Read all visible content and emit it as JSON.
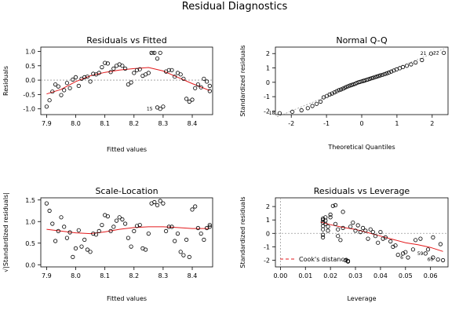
{
  "figure": {
    "title": "Residual Diagnostics"
  },
  "chart_data": [
    {
      "id": "rvf",
      "type": "scatter",
      "title": "Residuals vs Fitted",
      "xlabel": "Fitted values",
      "ylabel": "Residuals",
      "xlim": [
        7.88,
        8.47
      ],
      "ylim": [
        -1.2,
        1.15
      ],
      "xticks": [
        7.9,
        8.0,
        8.1,
        8.2,
        8.3,
        8.4
      ],
      "xticklabels": [
        "7.9",
        "8.0",
        "8.1",
        "8.2",
        "8.3",
        "8.4"
      ],
      "yticks": [
        -1.0,
        -0.5,
        0.0,
        0.5,
        1.0
      ],
      "yticklabels": [
        "-1.0",
        "-0.5",
        "0.0",
        "0.5",
        "1.0"
      ],
      "dotted_zero": true,
      "points": [
        [
          7.9,
          -0.92
        ],
        [
          7.91,
          -0.7
        ],
        [
          7.92,
          -0.4
        ],
        [
          7.93,
          -0.15
        ],
        [
          7.94,
          -0.22
        ],
        [
          7.95,
          -0.52
        ],
        [
          7.96,
          -0.35
        ],
        [
          7.97,
          -0.1
        ],
        [
          7.98,
          -0.28
        ],
        [
          7.99,
          0.02
        ],
        [
          8.0,
          0.1
        ],
        [
          8.01,
          -0.2
        ],
        [
          8.02,
          0.05
        ],
        [
          8.03,
          0.1
        ],
        [
          8.04,
          0.12
        ],
        [
          8.05,
          -0.05
        ],
        [
          8.06,
          0.22
        ],
        [
          8.07,
          0.2
        ],
        [
          8.08,
          0.25
        ],
        [
          8.09,
          0.45
        ],
        [
          8.1,
          0.6
        ],
        [
          8.11,
          0.58
        ],
        [
          8.12,
          0.28
        ],
        [
          8.13,
          0.4
        ],
        [
          8.14,
          0.5
        ],
        [
          8.15,
          0.55
        ],
        [
          8.16,
          0.5
        ],
        [
          8.17,
          0.4
        ],
        [
          8.18,
          -0.15
        ],
        [
          8.19,
          -0.08
        ],
        [
          8.2,
          0.25
        ],
        [
          8.21,
          0.35
        ],
        [
          8.22,
          0.38
        ],
        [
          8.23,
          0.15
        ],
        [
          8.24,
          0.2
        ],
        [
          8.25,
          0.25
        ],
        [
          8.26,
          0.95
        ],
        [
          8.27,
          0.95
        ],
        [
          8.28,
          0.75
        ],
        [
          8.29,
          0.95
        ],
        [
          8.28,
          -0.95
        ],
        [
          8.29,
          -1.0
        ],
        [
          8.3,
          -0.92
        ],
        [
          8.31,
          0.3
        ],
        [
          8.32,
          0.35
        ],
        [
          8.33,
          0.35
        ],
        [
          8.34,
          0.12
        ],
        [
          8.35,
          0.25
        ],
        [
          8.36,
          0.2
        ],
        [
          8.37,
          0.05
        ],
        [
          8.38,
          -0.65
        ],
        [
          8.39,
          -0.75
        ],
        [
          8.4,
          -0.68
        ],
        [
          8.41,
          -0.28
        ],
        [
          8.42,
          -0.15
        ],
        [
          8.43,
          -0.25
        ],
        [
          8.44,
          0.05
        ],
        [
          8.45,
          -0.05
        ],
        [
          8.46,
          -0.38
        ],
        [
          8.46,
          -0.2
        ]
      ],
      "smooth": [
        [
          7.9,
          -0.48
        ],
        [
          7.95,
          -0.32
        ],
        [
          8.0,
          -0.05
        ],
        [
          8.05,
          0.15
        ],
        [
          8.1,
          0.27
        ],
        [
          8.15,
          0.35
        ],
        [
          8.2,
          0.4
        ],
        [
          8.25,
          0.44
        ],
        [
          8.3,
          0.32
        ],
        [
          8.35,
          0.1
        ],
        [
          8.4,
          -0.12
        ],
        [
          8.46,
          -0.36
        ]
      ],
      "labels": [
        {
          "text": "21",
          "x": 8.29,
          "y": 0.95
        },
        {
          "text": "1S",
          "x": 8.28,
          "y": -1.0
        }
      ]
    },
    {
      "id": "qq",
      "type": "scatter",
      "title": "Normal Q-Q",
      "xlabel": "Theoretical Quantiles",
      "ylabel": "Standardized residuals",
      "xlim": [
        -2.45,
        2.45
      ],
      "ylim": [
        -2.25,
        2.45
      ],
      "xticks": [
        -2,
        -1,
        0,
        1,
        2
      ],
      "xticklabels": [
        "-2",
        "-1",
        "0",
        "1",
        "2"
      ],
      "yticks": [
        -2,
        -1,
        0,
        1,
        2
      ],
      "yticklabels": [
        "-2",
        "-1",
        "0",
        "1",
        "2"
      ],
      "refline": [
        [
          -2.4,
          -2.4
        ],
        [
          2.4,
          2.4
        ]
      ],
      "points": [
        [
          -2.33,
          -2.15
        ],
        [
          -1.97,
          -2.05
        ],
        [
          -1.71,
          -1.95
        ],
        [
          -1.53,
          -1.8
        ],
        [
          -1.4,
          -1.65
        ],
        [
          -1.28,
          -1.5
        ],
        [
          -1.17,
          -1.35
        ],
        [
          -1.08,
          -1.05
        ],
        [
          -0.99,
          -0.95
        ],
        [
          -0.91,
          -0.85
        ],
        [
          -0.84,
          -0.78
        ],
        [
          -0.77,
          -0.7
        ],
        [
          -0.71,
          -0.62
        ],
        [
          -0.65,
          -0.55
        ],
        [
          -0.59,
          -0.5
        ],
        [
          -0.53,
          -0.44
        ],
        [
          -0.48,
          -0.38
        ],
        [
          -0.43,
          -0.32
        ],
        [
          -0.38,
          -0.27
        ],
        [
          -0.33,
          -0.22
        ],
        [
          -0.28,
          -0.18
        ],
        [
          -0.23,
          -0.14
        ],
        [
          -0.18,
          -0.1
        ],
        [
          -0.14,
          -0.05
        ],
        [
          -0.09,
          0.0
        ],
        [
          -0.05,
          0.03
        ],
        [
          0.0,
          0.06
        ],
        [
          0.05,
          0.1
        ],
        [
          0.09,
          0.13
        ],
        [
          0.14,
          0.17
        ],
        [
          0.18,
          0.2
        ],
        [
          0.23,
          0.24
        ],
        [
          0.28,
          0.28
        ],
        [
          0.33,
          0.32
        ],
        [
          0.38,
          0.36
        ],
        [
          0.43,
          0.4
        ],
        [
          0.48,
          0.44
        ],
        [
          0.53,
          0.48
        ],
        [
          0.59,
          0.52
        ],
        [
          0.65,
          0.57
        ],
        [
          0.71,
          0.62
        ],
        [
          0.77,
          0.68
        ],
        [
          0.84,
          0.75
        ],
        [
          0.91,
          0.82
        ],
        [
          0.99,
          0.9
        ],
        [
          1.08,
          0.98
        ],
        [
          1.17,
          1.06
        ],
        [
          1.28,
          1.15
        ],
        [
          1.4,
          1.25
        ],
        [
          1.53,
          1.38
        ],
        [
          1.71,
          1.55
        ],
        [
          1.97,
          2.0
        ],
        [
          2.33,
          2.05
        ]
      ],
      "labels": [
        {
          "text": "18",
          "x": -2.33,
          "y": -2.15
        },
        {
          "text": "21",
          "x": 1.97,
          "y": 2.0
        },
        {
          "text": "22",
          "x": 2.33,
          "y": 2.05
        }
      ]
    },
    {
      "id": "sl",
      "type": "scatter",
      "title": "Scale-Location",
      "xlabel": "Fitted values",
      "ylabel": "√|Standardized residuals|",
      "xlim": [
        7.88,
        8.47
      ],
      "ylim": [
        -0.05,
        1.55
      ],
      "xticks": [
        7.9,
        8.0,
        8.1,
        8.2,
        8.3,
        8.4
      ],
      "xticklabels": [
        "7.9",
        "8.0",
        "8.1",
        "8.2",
        "8.3",
        "8.4"
      ],
      "yticks": [
        0.0,
        0.5,
        1.0,
        1.5
      ],
      "yticklabels": [
        "0.0",
        "0.5",
        "1.0",
        "1.5"
      ],
      "points": [
        [
          7.9,
          1.42
        ],
        [
          7.91,
          1.25
        ],
        [
          7.92,
          0.95
        ],
        [
          7.93,
          0.55
        ],
        [
          7.94,
          0.78
        ],
        [
          7.95,
          1.1
        ],
        [
          7.96,
          0.88
        ],
        [
          7.97,
          0.62
        ],
        [
          7.98,
          0.75
        ],
        [
          7.99,
          0.18
        ],
        [
          8.0,
          0.38
        ],
        [
          8.01,
          0.8
        ],
        [
          8.02,
          0.42
        ],
        [
          8.03,
          0.58
        ],
        [
          8.04,
          0.35
        ],
        [
          8.05,
          0.3
        ],
        [
          8.06,
          0.72
        ],
        [
          8.07,
          0.7
        ],
        [
          8.08,
          0.78
        ],
        [
          8.09,
          0.92
        ],
        [
          8.1,
          1.15
        ],
        [
          8.11,
          1.12
        ],
        [
          8.12,
          0.78
        ],
        [
          8.13,
          0.88
        ],
        [
          8.14,
          1.02
        ],
        [
          8.15,
          1.1
        ],
        [
          8.16,
          1.05
        ],
        [
          8.17,
          0.95
        ],
        [
          8.18,
          0.62
        ],
        [
          8.19,
          0.42
        ],
        [
          8.2,
          0.78
        ],
        [
          8.21,
          0.9
        ],
        [
          8.22,
          0.92
        ],
        [
          8.23,
          0.38
        ],
        [
          8.24,
          0.35
        ],
        [
          8.25,
          0.72
        ],
        [
          8.26,
          1.42
        ],
        [
          8.27,
          1.45
        ],
        [
          8.28,
          1.38
        ],
        [
          8.29,
          1.48
        ],
        [
          8.3,
          1.42
        ],
        [
          8.31,
          0.78
        ],
        [
          8.32,
          0.88
        ],
        [
          8.33,
          0.88
        ],
        [
          8.34,
          0.55
        ],
        [
          8.35,
          0.72
        ],
        [
          8.36,
          0.3
        ],
        [
          8.37,
          0.22
        ],
        [
          8.38,
          0.58
        ],
        [
          8.39,
          0.18
        ],
        [
          8.4,
          1.28
        ],
        [
          8.41,
          1.35
        ],
        [
          8.42,
          0.85
        ],
        [
          8.43,
          0.72
        ],
        [
          8.44,
          0.58
        ],
        [
          8.45,
          0.85
        ],
        [
          8.46,
          0.92
        ],
        [
          8.46,
          0.88
        ]
      ],
      "smooth": [
        [
          7.9,
          0.82
        ],
        [
          7.95,
          0.78
        ],
        [
          8.0,
          0.74
        ],
        [
          8.05,
          0.72
        ],
        [
          8.1,
          0.76
        ],
        [
          8.15,
          0.82
        ],
        [
          8.2,
          0.86
        ],
        [
          8.25,
          0.88
        ],
        [
          8.3,
          0.88
        ],
        [
          8.35,
          0.86
        ],
        [
          8.4,
          0.84
        ],
        [
          8.46,
          0.84
        ]
      ]
    },
    {
      "id": "rvl",
      "type": "scatter",
      "title": "Residuals vs Leverage",
      "xlabel": "Leverage",
      "ylabel": "Standardized residuals",
      "xlim": [
        -0.002,
        0.067
      ],
      "ylim": [
        -2.5,
        2.65
      ],
      "xticks": [
        0.0,
        0.01,
        0.02,
        0.03,
        0.04,
        0.05,
        0.06
      ],
      "xticklabels": [
        "0.00",
        "0.01",
        "0.02",
        "0.03",
        "0.04",
        "0.05",
        "0.06"
      ],
      "yticks": [
        -2,
        -1,
        0,
        1,
        2
      ],
      "yticklabels": [
        "-2",
        "-1",
        "0",
        "1",
        "2"
      ],
      "dotted_zero": true,
      "dotted_x0": true,
      "legend": {
        "text": "Cook's distance",
        "position": "bottom-left"
      },
      "points": [
        [
          0.017,
          1.1
        ],
        [
          0.017,
          1.0
        ],
        [
          0.017,
          0.8
        ],
        [
          0.017,
          0.55
        ],
        [
          0.017,
          0.3
        ],
        [
          0.017,
          -0.1
        ],
        [
          0.017,
          -0.3
        ],
        [
          0.018,
          1.2
        ],
        [
          0.018,
          0.95
        ],
        [
          0.018,
          0.7
        ],
        [
          0.019,
          0.5
        ],
        [
          0.019,
          0.2
        ],
        [
          0.02,
          1.4
        ],
        [
          0.02,
          1.2
        ],
        [
          0.021,
          2.05
        ],
        [
          0.022,
          2.1
        ],
        [
          0.022,
          0.7
        ],
        [
          0.023,
          0.3
        ],
        [
          0.023,
          -0.2
        ],
        [
          0.024,
          -0.5
        ],
        [
          0.025,
          1.6
        ],
        [
          0.025,
          0.4
        ],
        [
          0.026,
          -2.0
        ],
        [
          0.027,
          -2.05
        ],
        [
          0.027,
          -2.1
        ],
        [
          0.028,
          0.5
        ],
        [
          0.029,
          0.8
        ],
        [
          0.03,
          0.2
        ],
        [
          0.031,
          0.6
        ],
        [
          0.032,
          0.1
        ],
        [
          0.033,
          0.4
        ],
        [
          0.034,
          0.2
        ],
        [
          0.035,
          -0.4
        ],
        [
          0.036,
          0.3
        ],
        [
          0.037,
          0.1
        ],
        [
          0.038,
          -0.2
        ],
        [
          0.039,
          -0.7
        ],
        [
          0.04,
          0.1
        ],
        [
          0.041,
          -0.4
        ],
        [
          0.042,
          -0.3
        ],
        [
          0.044,
          -0.6
        ],
        [
          0.045,
          -1.0
        ],
        [
          0.046,
          -0.9
        ],
        [
          0.047,
          -1.6
        ],
        [
          0.049,
          -1.5
        ],
        [
          0.05,
          -1.4
        ],
        [
          0.051,
          -1.8
        ],
        [
          0.053,
          -1.2
        ],
        [
          0.054,
          -0.5
        ],
        [
          0.056,
          -0.4
        ],
        [
          0.058,
          -1.5
        ],
        [
          0.059,
          -1.2
        ],
        [
          0.061,
          -1.8
        ],
        [
          0.061,
          -0.3
        ],
        [
          0.063,
          -1.95
        ],
        [
          0.064,
          -0.8
        ],
        [
          0.065,
          -2.0
        ]
      ],
      "smooth": [
        [
          0.016,
          0.85
        ],
        [
          0.02,
          0.65
        ],
        [
          0.025,
          0.45
        ],
        [
          0.03,
          0.3
        ],
        [
          0.035,
          0.05
        ],
        [
          0.04,
          -0.2
        ],
        [
          0.045,
          -0.45
        ],
        [
          0.05,
          -0.7
        ],
        [
          0.055,
          -0.85
        ],
        [
          0.06,
          -1.05
        ],
        [
          0.065,
          -1.35
        ]
      ],
      "labels": [
        {
          "text": "59",
          "x": 0.059,
          "y": -1.5
        },
        {
          "text": "6",
          "x": 0.051,
          "y": -1.8
        },
        {
          "text": "60",
          "x": 0.063,
          "y": -1.95
        }
      ]
    }
  ]
}
